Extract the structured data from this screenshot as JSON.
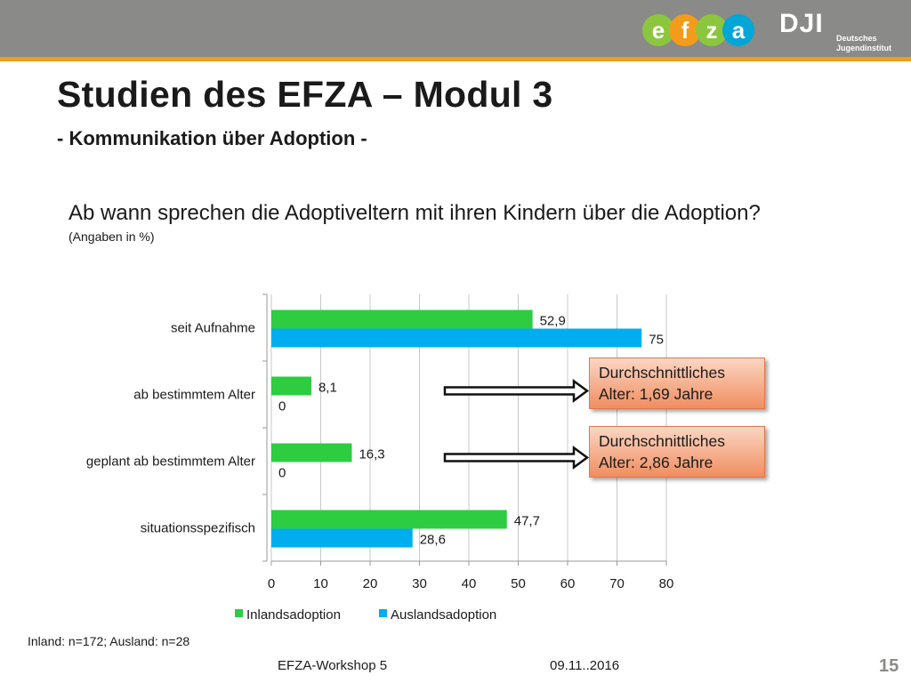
{
  "slide": {
    "title": "Studien des EFZA – Modul 3",
    "subtitle": "- Kommunikation über Adoption -",
    "question": "Ab wann sprechen die Adoptiveltern mit ihren Kindern über die Adoption?",
    "note": "(Angaben in %)",
    "sample_note": "Inland: n=172; Ausland: n=28",
    "footer_left": "EFZA-Workshop 5",
    "footer_date": "09.11..2016",
    "page_number": "15"
  },
  "logos": {
    "efza_letters": [
      "e",
      "f",
      "z",
      "a"
    ],
    "efza_colors": [
      "#8cc63f",
      "#f39c1b",
      "#8cc63f",
      "#00a6d6"
    ],
    "dji_text": "DJI",
    "dji_line1": "Deutsches",
    "dji_line2": "Jugendinstitut"
  },
  "callouts": [
    {
      "line1": "Durchschnittliches",
      "line2": "Alter: 1,69 Jahre"
    },
    {
      "line1": "Durchschnittliches",
      "line2": "Alter: 2,86 Jahre"
    }
  ],
  "chart_data": {
    "type": "bar",
    "orientation": "horizontal",
    "categories": [
      "seit Aufnahme",
      "ab bestimmtem Alter",
      "geplant ab bestimmtem Alter",
      "situationsspezifisch"
    ],
    "series": [
      {
        "name": "Inlandsadoption",
        "color": "#2ecc40",
        "values": [
          52.9,
          8.1,
          16.3,
          47.7
        ],
        "labels": [
          "52,9",
          "8,1",
          "16,3",
          "47,7"
        ]
      },
      {
        "name": "Auslandsadoption",
        "color": "#00aeef",
        "values": [
          75,
          0,
          0,
          28.6
        ],
        "labels": [
          "75",
          "0",
          "0",
          "28,6"
        ]
      }
    ],
    "xlim": [
      0,
      80
    ],
    "xticks": [
      0,
      10,
      20,
      30,
      40,
      50,
      60,
      70,
      80
    ],
    "grid": true,
    "legend": "bottom"
  }
}
